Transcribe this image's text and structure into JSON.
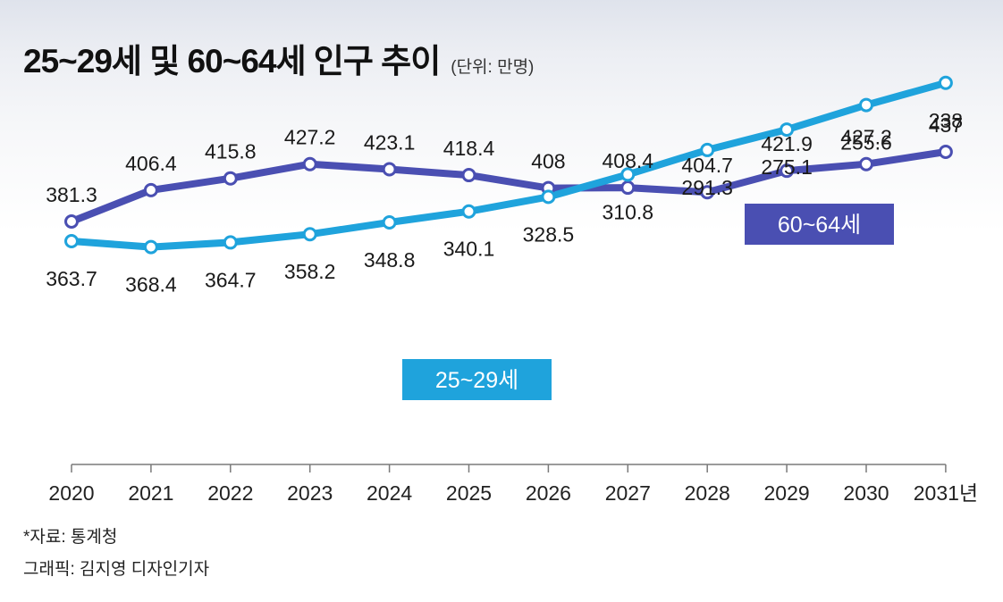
{
  "title": "25~29세 및 60~64세 인구 추이",
  "unit": "(단위: 만명)",
  "source": "*자료: 통계청",
  "credit": "그래픽: 김지영 디자인기자",
  "chart_data": {
    "type": "line",
    "title": "25~29세 및 60~64세 인구 추이",
    "unit": "만명",
    "x": [
      "2020",
      "2021",
      "2022",
      "2023",
      "2024",
      "2025",
      "2026",
      "2027",
      "2028",
      "2029",
      "2030",
      "2031년"
    ],
    "series": [
      {
        "name": "60~64세",
        "color": "#4a4fb2",
        "values": [
          381.3,
          406.4,
          415.8,
          427.2,
          423.1,
          418.4,
          408,
          408.4,
          404.7,
          421.9,
          427.2,
          437
        ],
        "labels": [
          "381.3",
          "406.4",
          "415.8",
          "427.2",
          "423.1",
          "418.4",
          "408",
          "408.4",
          "404.7",
          "421.9",
          "427.2",
          "437"
        ]
      },
      {
        "name": "25~29세",
        "color": "#1fa3dc",
        "values": [
          363.7,
          368.4,
          364.7,
          358.2,
          348.8,
          340.1,
          328.5,
          310.8,
          291.3,
          275.1,
          255.6,
          238
        ],
        "labels": [
          "363.7",
          "368.4",
          "364.7",
          "358.2",
          "348.8",
          "340.1",
          "328.5",
          "310.8",
          "291.3",
          "275.1",
          "255.6",
          "238"
        ]
      }
    ],
    "grid": false
  }
}
